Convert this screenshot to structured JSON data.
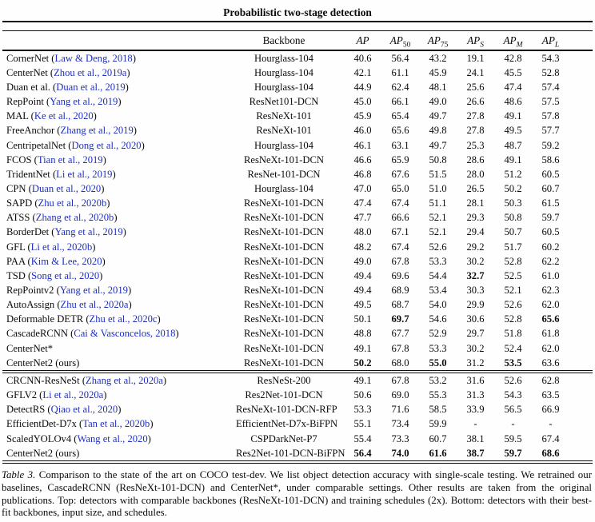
{
  "title": "Probabilistic two-stage detection",
  "link_color": "#1e2fc0",
  "header": {
    "backbone": "Backbone",
    "metrics": [
      {
        "base": "AP",
        "sub": ""
      },
      {
        "base": "AP",
        "sub": "50"
      },
      {
        "base": "AP",
        "sub": "75"
      },
      {
        "base": "AP",
        "sub": "S"
      },
      {
        "base": "AP",
        "sub": "M"
      },
      {
        "base": "AP",
        "sub": "L"
      }
    ]
  },
  "sections": [
    {
      "name": "comparable-backbones",
      "rows": [
        {
          "method": "CornerNet",
          "cite": "Law & Deng, 2018",
          "backbone": "Hourglass-104",
          "values": [
            "40.6",
            "56.4",
            "43.2",
            "19.1",
            "42.8",
            "54.3"
          ],
          "bold": []
        },
        {
          "method": "CenterNet",
          "cite": "Zhou et al., 2019a",
          "backbone": "Hourglass-104",
          "values": [
            "42.1",
            "61.1",
            "45.9",
            "24.1",
            "45.5",
            "52.8"
          ],
          "bold": []
        },
        {
          "method": "Duan et al.",
          "cite": "Duan et al., 2019",
          "backbone": "Hourglass-104",
          "values": [
            "44.9",
            "62.4",
            "48.1",
            "25.6",
            "47.4",
            "57.4"
          ],
          "bold": []
        },
        {
          "method": "RepPoint",
          "cite": "Yang et al., 2019",
          "backbone": "ResNet101-DCN",
          "values": [
            "45.0",
            "66.1",
            "49.0",
            "26.6",
            "48.6",
            "57.5"
          ],
          "bold": []
        },
        {
          "method": "MAL",
          "cite": "Ke et al., 2020",
          "backbone": "ResNeXt-101",
          "values": [
            "45.9",
            "65.4",
            "49.7",
            "27.8",
            "49.1",
            "57.8"
          ],
          "bold": []
        },
        {
          "method": "FreeAnchor",
          "cite": "Zhang et al., 2019",
          "backbone": "ResNeXt-101",
          "values": [
            "46.0",
            "65.6",
            "49.8",
            "27.8",
            "49.5",
            "57.7"
          ],
          "bold": []
        },
        {
          "method": "CentripetalNet",
          "cite": "Dong et al., 2020",
          "backbone": "Hourglass-104",
          "values": [
            "46.1",
            "63.1",
            "49.7",
            "25.3",
            "48.7",
            "59.2"
          ],
          "bold": []
        },
        {
          "method": "FCOS",
          "cite": "Tian et al., 2019",
          "backbone": "ResNeXt-101-DCN",
          "values": [
            "46.6",
            "65.9",
            "50.8",
            "28.6",
            "49.1",
            "58.6"
          ],
          "bold": []
        },
        {
          "method": "TridentNet",
          "cite": "Li et al., 2019",
          "backbone": "ResNet-101-DCN",
          "values": [
            "46.8",
            "67.6",
            "51.5",
            "28.0",
            "51.2",
            "60.5"
          ],
          "bold": []
        },
        {
          "method": "CPN",
          "cite": "Duan et al., 2020",
          "backbone": "Hourglass-104",
          "values": [
            "47.0",
            "65.0",
            "51.0",
            "26.5",
            "50.2",
            "60.7"
          ],
          "bold": []
        },
        {
          "method": "SAPD",
          "cite": "Zhu et al., 2020b",
          "backbone": "ResNeXt-101-DCN",
          "values": [
            "47.4",
            "67.4",
            "51.1",
            "28.1",
            "50.3",
            "61.5"
          ],
          "bold": []
        },
        {
          "method": "ATSS",
          "cite": "Zhang et al., 2020b",
          "backbone": "ResNeXt-101-DCN",
          "values": [
            "47.7",
            "66.6",
            "52.1",
            "29.3",
            "50.8",
            "59.7"
          ],
          "bold": []
        },
        {
          "method": "BorderDet",
          "cite": "Yang et al., 2019",
          "backbone": "ResNeXt-101-DCN",
          "values": [
            "48.0",
            "67.1",
            "52.1",
            "29.4",
            "50.7",
            "60.5"
          ],
          "bold": []
        },
        {
          "method": "GFL",
          "cite": "Li et al., 2020b",
          "backbone": "ResNeXt-101-DCN",
          "values": [
            "48.2",
            "67.4",
            "52.6",
            "29.2",
            "51.7",
            "60.2"
          ],
          "bold": []
        },
        {
          "method": "PAA",
          "cite": "Kim & Lee, 2020",
          "backbone": "ResNeXt-101-DCN",
          "values": [
            "49.0",
            "67.8",
            "53.3",
            "30.2",
            "52.8",
            "62.2"
          ],
          "bold": []
        },
        {
          "method": "TSD",
          "cite": "Song et al., 2020",
          "backbone": "ResNeXt-101-DCN",
          "values": [
            "49.4",
            "69.6",
            "54.4",
            "32.7",
            "52.5",
            "61.0"
          ],
          "bold": [
            3
          ]
        },
        {
          "method": "RepPointv2",
          "cite": "Yang et al., 2019",
          "backbone": "ResNeXt-101-DCN",
          "values": [
            "49.4",
            "68.9",
            "53.4",
            "30.3",
            "52.1",
            "62.3"
          ],
          "bold": []
        },
        {
          "method": "AutoAssign",
          "cite": "Zhu et al., 2020a",
          "backbone": "ResNeXt-101-DCN",
          "values": [
            "49.5",
            "68.7",
            "54.0",
            "29.9",
            "52.6",
            "62.0"
          ],
          "bold": []
        },
        {
          "method": "Deformable DETR",
          "cite": "Zhu et al., 2020c",
          "backbone": "ResNeXt-101-DCN",
          "values": [
            "50.1",
            "69.7",
            "54.6",
            "30.6",
            "52.8",
            "65.6"
          ],
          "bold": [
            1,
            5
          ]
        },
        {
          "method": "CascadeRCNN",
          "cite": "Cai & Vasconcelos, 2018",
          "backbone": "ResNeXt-101-DCN",
          "values": [
            "48.8",
            "67.7",
            "52.9",
            "29.7",
            "51.8",
            "61.8"
          ],
          "bold": []
        },
        {
          "method": "CenterNet*",
          "backbone": "ResNeXt-101-DCN",
          "values": [
            "49.1",
            "67.8",
            "53.3",
            "30.2",
            "52.4",
            "62.0"
          ],
          "bold": []
        },
        {
          "method": "CenterNet2",
          "note": "ours",
          "backbone": "ResNeXt-101-DCN",
          "values": [
            "50.2",
            "68.0",
            "55.0",
            "31.2",
            "53.5",
            "63.6"
          ],
          "bold": [
            0,
            2,
            4
          ]
        }
      ]
    },
    {
      "name": "best-fit-backbones",
      "rows": [
        {
          "method": "CRCNN-ResNeSt",
          "cite": "Zhang et al., 2020a",
          "backbone": "ResNeSt-200",
          "values": [
            "49.1",
            "67.8",
            "53.2",
            "31.6",
            "52.6",
            "62.8"
          ],
          "bold": []
        },
        {
          "method": "GFLV2",
          "cite": "Li et al., 2020a",
          "backbone": "Res2Net-101-DCN",
          "values": [
            "50.6",
            "69.0",
            "55.3",
            "31.3",
            "54.3",
            "63.5"
          ],
          "bold": []
        },
        {
          "method": "DetectRS",
          "cite": "Qiao et al., 2020",
          "backbone": "ResNeXt-101-DCN-RFP",
          "values": [
            "53.3",
            "71.6",
            "58.5",
            "33.9",
            "56.5",
            "66.9"
          ],
          "bold": []
        },
        {
          "method": "EfficientDet-D7x",
          "cite": "Tan et al., 2020b",
          "backbone": "EfficientNet-D7x-BiFPN",
          "values": [
            "55.1",
            "73.4",
            "59.9",
            "-",
            "-",
            "-"
          ],
          "bold": []
        },
        {
          "method": "ScaledYOLOv4",
          "cite": "Wang et al., 2020",
          "backbone": "CSPDarkNet-P7",
          "values": [
            "55.4",
            "73.3",
            "60.7",
            "38.1",
            "59.5",
            "67.4"
          ],
          "bold": []
        },
        {
          "method": "CenterNet2",
          "note": "ours",
          "backbone": "Res2Net-101-DCN-BiFPN",
          "values": [
            "56.4",
            "74.0",
            "61.6",
            "38.7",
            "59.7",
            "68.6"
          ],
          "bold": [
            0,
            1,
            2,
            3,
            4,
            5
          ]
        }
      ]
    }
  ],
  "caption": {
    "label": "Table 3.",
    "text": " Comparison to the state of the art on COCO test-dev. We list object detection accuracy with single-scale testing. We retrained our baselines, CascadeRCNN (ResNeXt-101-DCN) and CenterNet*, under comparable settings. Other results are taken from the original publications. Top: detectors with comparable backbones (ResNeXt-101-DCN) and training schedules (2x). Bottom: detectors with their best-fit backbones, input size, and schedules."
  }
}
